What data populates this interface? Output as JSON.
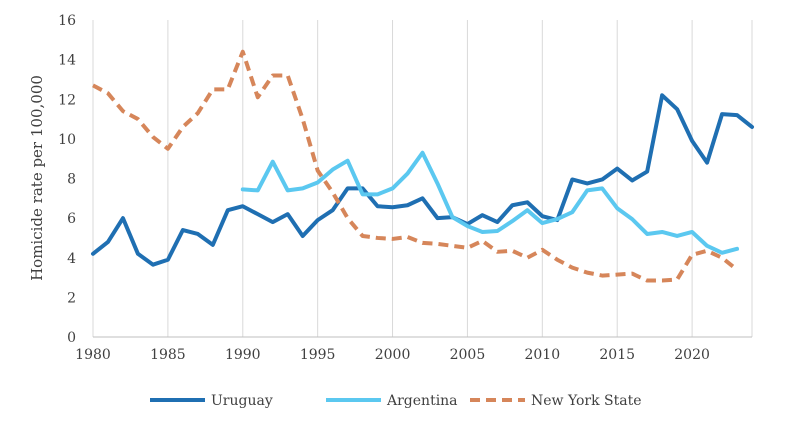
{
  "chart_data": {
    "type": "line",
    "title": "",
    "xlabel": "",
    "ylabel": "Homicide rate per 100,000",
    "xlim": [
      1980,
      2024
    ],
    "ylim": [
      0,
      16
    ],
    "x_ticks": [
      1980,
      1985,
      1990,
      1995,
      2000,
      2005,
      2010,
      2015,
      2020
    ],
    "y_ticks": [
      0,
      2,
      4,
      6,
      8,
      10,
      12,
      14,
      16
    ],
    "grid": "vertical",
    "legend_position": "bottom",
    "series": [
      {
        "name": "Uruguay",
        "color": "#1f6fb2",
        "dash": "solid",
        "x": [
          1980,
          1981,
          1982,
          1983,
          1984,
          1985,
          1986,
          1987,
          1988,
          1989,
          1990,
          1991,
          1992,
          1993,
          1994,
          1995,
          1996,
          1997,
          1998,
          1999,
          2000,
          2001,
          2002,
          2003,
          2004,
          2005,
          2006,
          2007,
          2008,
          2009,
          2010,
          2011,
          2012,
          2013,
          2014,
          2015,
          2016,
          2017,
          2018,
          2019,
          2020,
          2021,
          2022,
          2023,
          2024
        ],
        "values": [
          4.2,
          4.8,
          6.0,
          4.2,
          3.65,
          3.9,
          5.4,
          5.2,
          4.65,
          6.4,
          6.6,
          6.2,
          5.8,
          6.2,
          5.1,
          5.9,
          6.4,
          7.5,
          7.5,
          6.6,
          6.55,
          6.65,
          7.0,
          6.0,
          6.05,
          5.7,
          6.15,
          5.8,
          6.65,
          6.8,
          6.1,
          5.9,
          7.95,
          7.75,
          7.95,
          8.5,
          7.9,
          8.35,
          12.2,
          11.5,
          9.9,
          8.8,
          11.25,
          11.2,
          10.6
        ]
      },
      {
        "name": "Argentina",
        "color": "#5bc8f0",
        "dash": "solid",
        "x": [
          1990,
          1991,
          1992,
          1993,
          1994,
          1995,
          1996,
          1997,
          1998,
          1999,
          2000,
          2001,
          2002,
          2003,
          2004,
          2005,
          2006,
          2007,
          2008,
          2009,
          2010,
          2011,
          2012,
          2013,
          2014,
          2015,
          2016,
          2017,
          2018,
          2019,
          2020,
          2021,
          2022,
          2023
        ],
        "values": [
          7.45,
          7.4,
          8.85,
          7.4,
          7.5,
          7.8,
          8.45,
          8.9,
          7.2,
          7.2,
          7.5,
          8.25,
          9.3,
          7.75,
          6.05,
          5.6,
          5.3,
          5.35,
          5.85,
          6.4,
          5.75,
          5.95,
          6.3,
          7.4,
          7.5,
          6.5,
          5.95,
          5.2,
          5.3,
          5.1,
          5.3,
          4.6,
          4.25,
          4.45
        ]
      },
      {
        "name": "New York State",
        "color": "#d6865a",
        "dash": "dashed",
        "x": [
          1980,
          1981,
          1982,
          1983,
          1984,
          1985,
          1986,
          1987,
          1988,
          1989,
          1990,
          1991,
          1992,
          1993,
          1994,
          1995,
          1996,
          1997,
          1998,
          1999,
          2000,
          2001,
          2002,
          2003,
          2004,
          2005,
          2006,
          2007,
          2008,
          2009,
          2010,
          2011,
          2012,
          2013,
          2014,
          2015,
          2016,
          2017,
          2018,
          2019,
          2020,
          2021,
          2022,
          2023
        ],
        "values": [
          12.7,
          12.3,
          11.4,
          11.0,
          10.1,
          9.5,
          10.6,
          11.3,
          12.5,
          12.5,
          14.4,
          12.1,
          13.2,
          13.2,
          11.0,
          8.4,
          7.3,
          6.0,
          5.1,
          5.0,
          4.95,
          5.05,
          4.75,
          4.7,
          4.6,
          4.5,
          4.85,
          4.3,
          4.35,
          4.0,
          4.4,
          3.9,
          3.5,
          3.25,
          3.1,
          3.15,
          3.2,
          2.85,
          2.85,
          2.9,
          4.15,
          4.35,
          4.0,
          3.4
        ]
      }
    ]
  }
}
